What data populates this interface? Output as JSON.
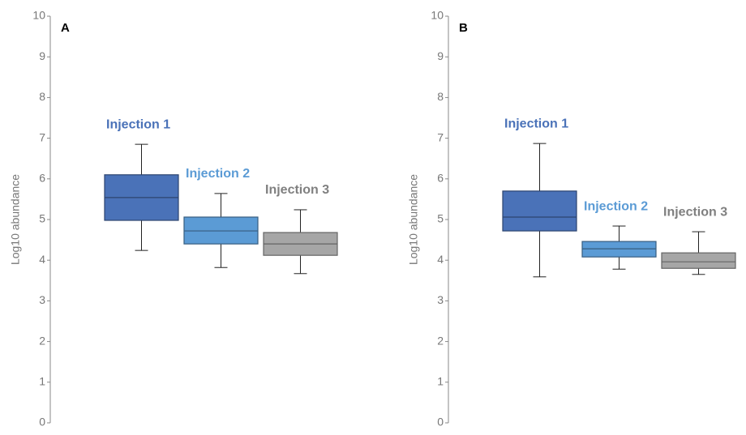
{
  "chart_data": [
    {
      "type": "box",
      "panel_label": "A",
      "y_label": "Log10 abundance",
      "ylim": [
        0,
        10
      ],
      "yticks": [
        0,
        1,
        2,
        3,
        4,
        5,
        6,
        7,
        8,
        9,
        10
      ],
      "series": [
        {
          "name": "Injection 1",
          "color": "#4a72b8",
          "whisker_low": 4.24,
          "q1": 4.98,
          "median": 5.54,
          "q3": 6.1,
          "whisker_high": 6.85
        },
        {
          "name": "Injection 2",
          "color": "#5b9bd5",
          "whisker_low": 3.82,
          "q1": 4.4,
          "median": 4.72,
          "q3": 5.06,
          "whisker_high": 5.64
        },
        {
          "name": "Injection 3",
          "color": "#a6a6a6",
          "whisker_low": 3.67,
          "q1": 4.12,
          "median": 4.4,
          "q3": 4.68,
          "whisker_high": 5.24
        }
      ]
    },
    {
      "type": "box",
      "panel_label": "B",
      "y_label": "Log10 abundance",
      "ylim": [
        0,
        10
      ],
      "yticks": [
        0,
        1,
        2,
        3,
        4,
        5,
        6,
        7,
        8,
        9,
        10
      ],
      "series": [
        {
          "name": "Injection 1",
          "color": "#4a72b8",
          "whisker_low": 3.59,
          "q1": 4.72,
          "median": 5.06,
          "q3": 5.7,
          "whisker_high": 6.87
        },
        {
          "name": "Injection 2",
          "color": "#5b9bd5",
          "whisker_low": 3.78,
          "q1": 4.08,
          "median": 4.28,
          "q3": 4.46,
          "whisker_high": 4.84
        },
        {
          "name": "Injection 3",
          "color": "#a6a6a6",
          "whisker_low": 3.65,
          "q1": 3.8,
          "median": 3.96,
          "q3": 4.18,
          "whisker_high": 4.7
        }
      ]
    }
  ]
}
